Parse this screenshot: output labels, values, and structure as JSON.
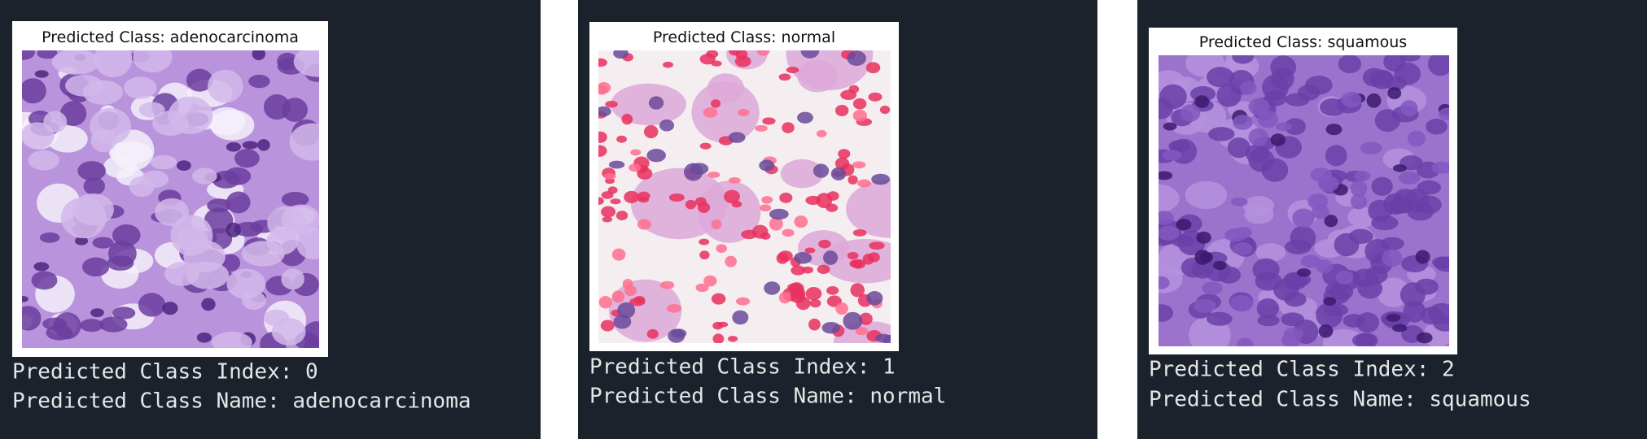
{
  "panels": [
    {
      "title": "Predicted Class: adenocarcinoma",
      "index_line": "Predicted Class Index: 0",
      "name_line": "Predicted Class Name: adenocarcinoma"
    },
    {
      "title": "Predicted Class: normal",
      "index_line": "Predicted Class Index: 1",
      "name_line": "Predicted Class Name: normal"
    },
    {
      "title": "Predicted Class: squamous",
      "index_line": "Predicted Class Index: 2",
      "name_line": "Predicted Class Name: squamous"
    }
  ]
}
